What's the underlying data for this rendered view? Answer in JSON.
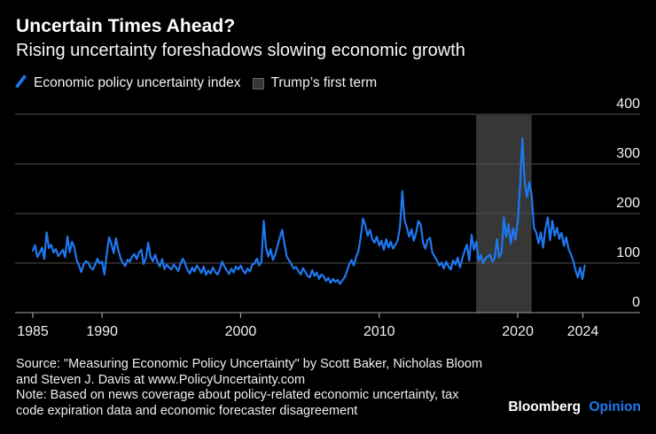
{
  "header": {
    "title": "Uncertain Times Ahead?",
    "subtitle": "Rising uncertainty foreshadows slowing economic growth"
  },
  "legend": {
    "line_label": "Economic policy uncertainty index",
    "band_label": "Trump’s first term"
  },
  "chart_data": {
    "type": "line",
    "title": "Uncertain Times Ahead?",
    "subtitle": "Rising uncertainty foreshadows slowing economic growth",
    "ylim": [
      0,
      400
    ],
    "grid": true,
    "legend_position": "top",
    "y_ticks": [
      {
        "label": "0",
        "value": 0
      },
      {
        "label": "100",
        "value": 100
      },
      {
        "label": "200",
        "value": 200
      },
      {
        "label": "300",
        "value": 300
      },
      {
        "label": "400",
        "value": 400
      }
    ],
    "x_ticks": [
      {
        "label": "1985",
        "pos_year": 1985
      },
      {
        "label": "1990",
        "pos_year": 1990
      },
      {
        "label": "2000",
        "pos_year": 2000
      },
      {
        "label": "2010",
        "pos_year": 2010
      },
      {
        "label": "2020",
        "pos_year": 2020
      },
      {
        "label": "2024",
        "pos_year": 2024.7
      }
    ],
    "band": {
      "name": "Trump’s first term",
      "from_year": 2017.0,
      "to_year": 2021.0,
      "color": "#373737"
    },
    "colors": {
      "background": "#000000",
      "line": "#1e78f0",
      "grid": "#4f4f4f",
      "axis": "#9f9f9f",
      "labels": "#f2f2f2"
    },
    "series": [
      {
        "name": "Economic policy uncertainty index",
        "color": "#1e78f0",
        "start_year": 1985.0,
        "points_per_year": 6,
        "values": [
          125,
          136,
          112,
          121,
          131,
          108,
          162,
          130,
          137,
          121,
          128,
          114,
          120,
          127,
          112,
          154,
          122,
          143,
          131,
          106,
          95,
          82,
          97,
          104,
          101,
          91,
          87,
          97,
          109,
          99,
          103,
          77,
          118,
          152,
          139,
          120,
          150,
          127,
          110,
          100,
          94,
          107,
          103,
          113,
          118,
          108,
          121,
          127,
          98,
          110,
          141,
          112,
          104,
          117,
          102,
          93,
          108,
          88,
          97,
          91,
          87,
          97,
          91,
          84,
          99,
          109,
          99,
          86,
          79,
          91,
          83,
          95,
          88,
          80,
          93,
          76,
          85,
          79,
          91,
          82,
          77,
          87,
          103,
          93,
          85,
          78,
          89,
          81,
          93,
          87,
          95,
          85,
          79,
          89,
          83,
          97,
          99,
          109,
          95,
          103,
          185,
          131,
          113,
          128,
          106,
          118,
          135,
          152,
          167,
          138,
          113,
          105,
          97,
          89,
          92,
          84,
          77,
          90,
          82,
          74,
          71,
          86,
          74,
          81,
          68,
          77,
          73,
          64,
          70,
          60,
          68,
          62,
          66,
          58,
          65,
          71,
          83,
          97,
          106,
          95,
          112,
          124,
          152,
          190,
          176,
          155,
          167,
          148,
          141,
          153,
          135,
          145,
          127,
          148,
          131,
          143,
          129,
          137,
          146,
          173,
          245,
          187,
          171,
          153,
          168,
          145,
          161,
          185,
          177,
          141,
          129,
          147,
          151,
          121,
          113,
          105,
          95,
          101,
          89,
          103,
          93,
          87,
          105,
          97,
          111,
          91,
          109,
          125,
          137,
          105,
          157,
          127,
          143,
          105,
          116,
          99,
          109,
          113,
          117,
          103,
          109,
          148,
          112,
          121,
          192,
          153,
          178,
          139,
          170,
          147,
          184,
          258,
          352,
          262,
          233,
          263,
          238,
          171,
          161,
          140,
          162,
          131,
          170,
          192,
          146,
          185,
          155,
          171,
          149,
          161,
          135,
          152,
          128,
          118,
          105,
          86,
          71,
          91,
          68,
          95
        ]
      }
    ]
  },
  "source": {
    "lines": [
      "Source: \"Measuring Economic Policy Uncertainty\" by Scott Baker, Nicholas Bloom",
      "and Steven J. Davis at www.PolicyUncertainty.com",
      "Note: Based on news coverage about policy-related economic uncertainty, tax",
      "code expiration data and economic forecaster disagreement"
    ]
  },
  "logo": {
    "brand": "Bloomberg",
    "edition": "Opinion"
  }
}
